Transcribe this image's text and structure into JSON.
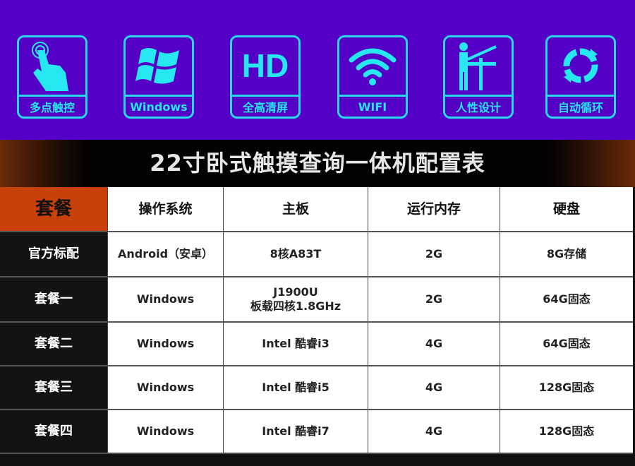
{
  "features": [
    {
      "icon": "touch-hand-icon",
      "label": "多点触控"
    },
    {
      "icon": "windows-logo-icon",
      "label": "Windows"
    },
    {
      "icon": "hd-icon",
      "label": "全高清屏",
      "glyph": "HD"
    },
    {
      "icon": "wifi-icon",
      "label": "WIFI"
    },
    {
      "icon": "ergonomic-person-icon",
      "label": "人性设计"
    },
    {
      "icon": "cycle-arrows-icon",
      "label": "自动循环"
    }
  ],
  "title": "22寸卧式触摸查询一体机配置表",
  "table": {
    "headers": [
      "套餐",
      "操作系统",
      "主板",
      "运行内存",
      "硬盘"
    ],
    "rows": [
      [
        "官方标配",
        "Android（安卓）",
        "8核A83T",
        "2G",
        "8G存储"
      ],
      [
        "套餐一",
        "Windows",
        "J1900U\n板载四核1.8GHz",
        "2G",
        "64G固态"
      ],
      [
        "套餐二",
        "Windows",
        "Intel 酷睿i3",
        "4G",
        "64G固态"
      ],
      [
        "套餐三",
        "Windows",
        "Intel 酷睿i5",
        "4G",
        "128G固态"
      ],
      [
        "套餐四",
        "Windows",
        "Intel 酷睿i7",
        "4G",
        "128G固态"
      ]
    ]
  },
  "colors": {
    "top_bg": "#5500c6",
    "icon_cyan": "#27d8f0",
    "header_orange": "#c8400a"
  }
}
